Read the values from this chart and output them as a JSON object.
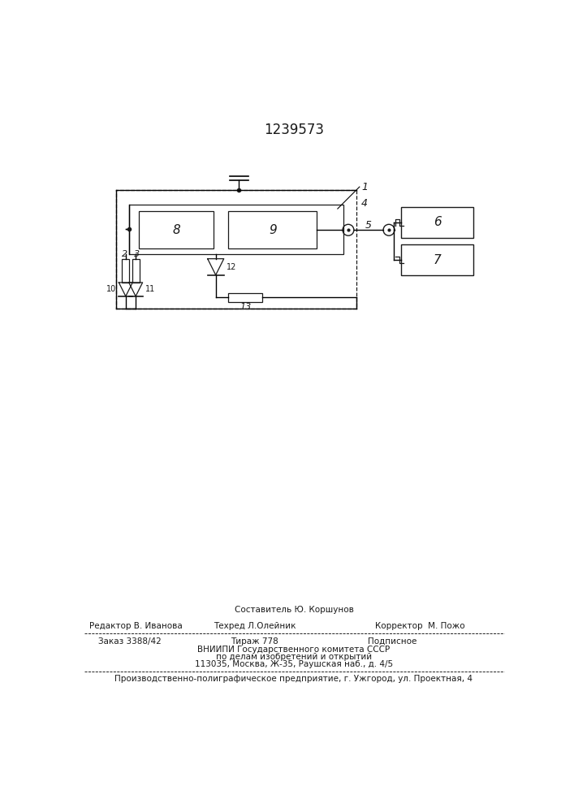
{
  "title": "1239573",
  "bg_color": "#ffffff",
  "line_color": "#1a1a1a",
  "footer_line1_left": "Редактор В. Иванова",
  "footer_line1_center": "Составитель Ю. Коршунов",
  "footer_line1_center2": "Техред Л.Олейник",
  "footer_line1_right": "Корректор  М. Пожо",
  "footer_line2": "Заказ 3388/42        Тираж 778              Подписное",
  "footer_line3": "ВНИИПИ Государственного комитета СССР",
  "footer_line4": "по делам изобретений и открытий",
  "footer_line5": "113035, Москва, Ж-35, Раушская наб., д. 4/5",
  "footer_line6": "Производственно-полиграфическое предприятие, г. Ужгород, ул. Проектная, 4"
}
